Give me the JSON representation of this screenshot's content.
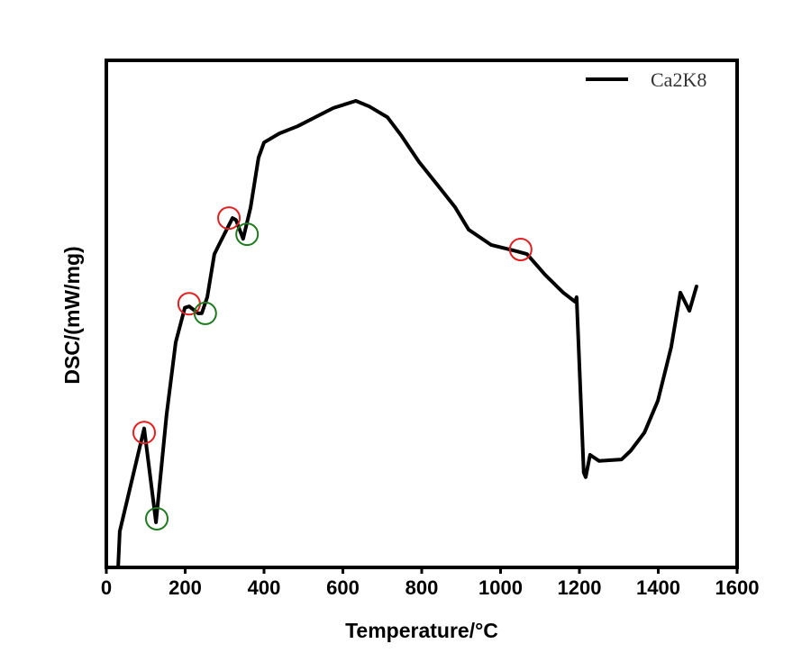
{
  "chart_data": {
    "type": "line",
    "title": "",
    "xlabel": "Temperature/°C",
    "ylabel": "DSC/(mW/mg)",
    "xlim": [
      0,
      1600
    ],
    "ylim": [
      0,
      100
    ],
    "y_units_note": "arbitrary (no y tick labels shown)",
    "xticks": [
      0,
      200,
      400,
      600,
      800,
      1000,
      1200,
      1400,
      1600
    ],
    "legend": {
      "position": "top-right",
      "entries": [
        "Ca2K8"
      ]
    },
    "grid": false,
    "series": [
      {
        "name": "Ca2K8",
        "color": "#000000",
        "points": [
          [
            30,
            0
          ],
          [
            34,
            7.1
          ],
          [
            96,
            27.4
          ],
          [
            126,
            8.9
          ],
          [
            153,
            30.2
          ],
          [
            176,
            44.4
          ],
          [
            199,
            51.2
          ],
          [
            210,
            51.5
          ],
          [
            233,
            50.1
          ],
          [
            242,
            50.1
          ],
          [
            256,
            53.3
          ],
          [
            274,
            61.8
          ],
          [
            290,
            64.3
          ],
          [
            320,
            68.9
          ],
          [
            329,
            68.5
          ],
          [
            347,
            64.8
          ],
          [
            366,
            71
          ],
          [
            386,
            80.8
          ],
          [
            400,
            83.8
          ],
          [
            439,
            85.6
          ],
          [
            485,
            87
          ],
          [
            530,
            88.8
          ],
          [
            576,
            90.6
          ],
          [
            633,
            92
          ],
          [
            667,
            90.9
          ],
          [
            713,
            88.8
          ],
          [
            747,
            85.3
          ],
          [
            793,
            80
          ],
          [
            839,
            75.5
          ],
          [
            885,
            71
          ],
          [
            919,
            66.6
          ],
          [
            976,
            63.6
          ],
          [
            1033,
            62.5
          ],
          [
            1067,
            61.8
          ],
          [
            1113,
            57.7
          ],
          [
            1159,
            54.2
          ],
          [
            1189,
            52.4
          ],
          [
            1193,
            53.3
          ],
          [
            1211,
            18.7
          ],
          [
            1216,
            17.8
          ],
          [
            1227,
            22.2
          ],
          [
            1250,
            21
          ],
          [
            1307,
            21.3
          ],
          [
            1330,
            23
          ],
          [
            1365,
            26.6
          ],
          [
            1399,
            32.9
          ],
          [
            1433,
            43.5
          ],
          [
            1456,
            54.2
          ],
          [
            1479,
            50.6
          ],
          [
            1497,
            55.4
          ]
        ]
      }
    ],
    "annotations": [
      {
        "type": "circle",
        "color": "#e02020",
        "x": 96,
        "y": 26.6
      },
      {
        "type": "circle",
        "color": "#e02020",
        "x": 210,
        "y": 52
      },
      {
        "type": "circle",
        "color": "#e02020",
        "x": 311,
        "y": 68.9
      },
      {
        "type": "circle",
        "color": "#e02020",
        "x": 1051,
        "y": 62.7
      },
      {
        "type": "circle",
        "color": "#1e7a1e",
        "x": 128,
        "y": 9.6
      },
      {
        "type": "circle",
        "color": "#1e7a1e",
        "x": 251,
        "y": 50.1
      },
      {
        "type": "circle",
        "color": "#1e7a1e",
        "x": 357,
        "y": 65.7
      }
    ]
  }
}
